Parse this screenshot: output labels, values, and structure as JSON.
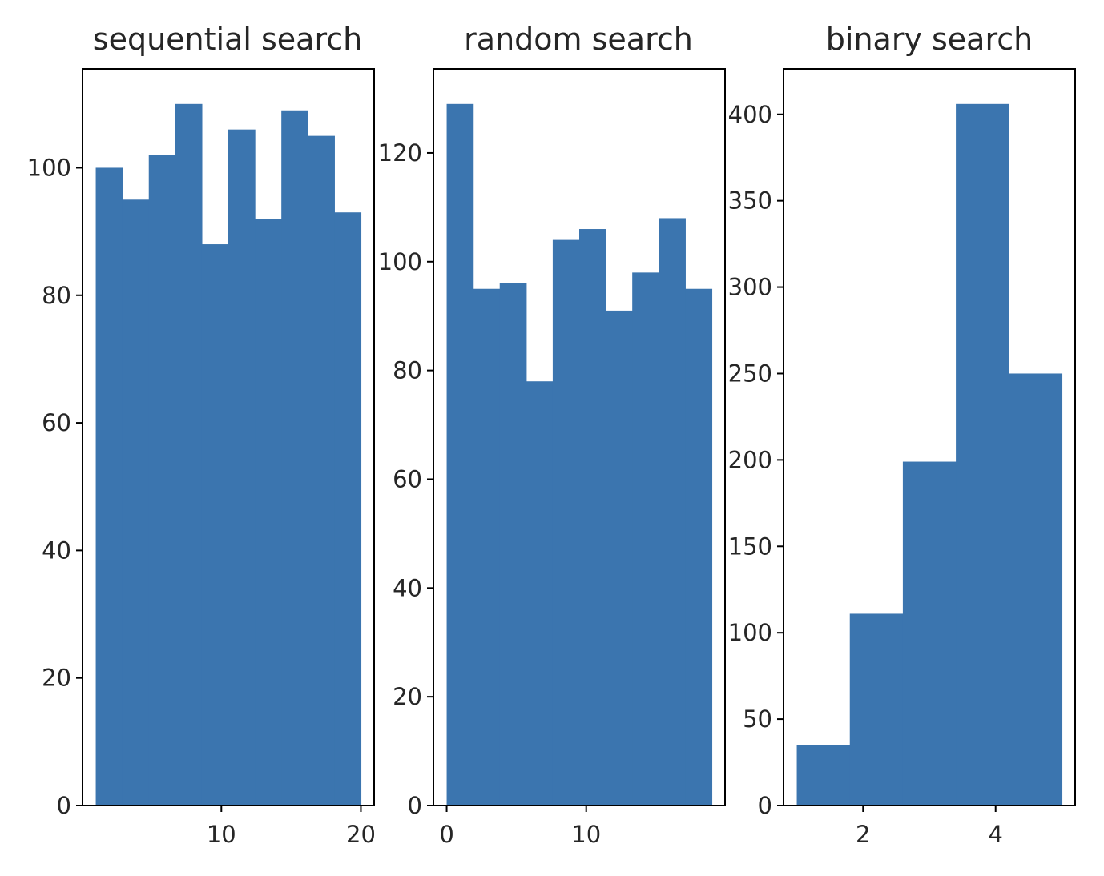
{
  "colors": {
    "bar_fill": "#3b75af",
    "axis": "#000000",
    "text": "#262626",
    "background": "#ffffff"
  },
  "chart_data": [
    {
      "type": "bar",
      "chart_kind": "histogram",
      "title": "sequential search",
      "xlabel": "",
      "ylabel": "",
      "xlim": [
        0.05,
        20.95
      ],
      "ylim": [
        0,
        115.5
      ],
      "bin_edges": [
        1,
        2.9,
        4.8,
        6.7,
        8.6,
        10.5,
        12.4,
        14.3,
        16.2,
        18.1,
        20
      ],
      "values": [
        100,
        95,
        102,
        110,
        88,
        106,
        92,
        109,
        105,
        93
      ],
      "xticks": [
        10,
        20
      ],
      "yticks": [
        0,
        20,
        40,
        60,
        80,
        100
      ],
      "grid": false,
      "legend": "none"
    },
    {
      "type": "bar",
      "chart_kind": "histogram",
      "title": "random search",
      "xlabel": "",
      "ylabel": "",
      "xlim": [
        -0.95,
        19.95
      ],
      "ylim": [
        0,
        135.45
      ],
      "bin_edges": [
        0,
        1.9,
        3.8,
        5.7,
        7.6,
        9.5,
        11.4,
        13.3,
        15.2,
        17.1,
        19
      ],
      "values": [
        129,
        95,
        96,
        78,
        104,
        106,
        91,
        98,
        108,
        95
      ],
      "xticks": [
        0,
        10
      ],
      "yticks": [
        0,
        20,
        40,
        60,
        80,
        100,
        120
      ],
      "grid": false,
      "legend": "none"
    },
    {
      "type": "bar",
      "chart_kind": "histogram",
      "title": "binary search",
      "xlabel": "",
      "ylabel": "",
      "xlim": [
        0.8,
        5.2
      ],
      "ylim": [
        0,
        426.3
      ],
      "bin_edges": [
        1,
        1.8,
        2.6,
        3.4,
        4.2,
        5
      ],
      "values": [
        35,
        111,
        199,
        406,
        250
      ],
      "xticks": [
        2,
        4
      ],
      "yticks": [
        0,
        50,
        100,
        150,
        200,
        250,
        300,
        350,
        400
      ],
      "grid": false,
      "legend": "none"
    }
  ]
}
